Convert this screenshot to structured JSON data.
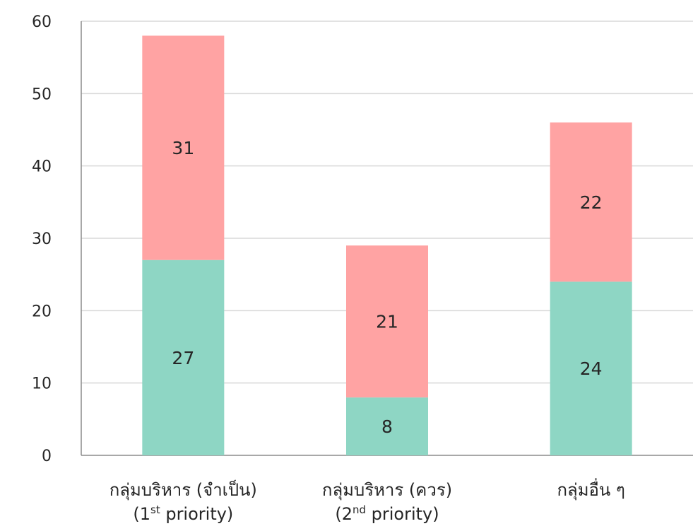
{
  "chart_data": {
    "type": "bar",
    "stacked": true,
    "categories": [
      {
        "line1": "กลุ่มบริหาร (จำเป็น)",
        "line2_pre": "(1",
        "line2_sup": "st",
        "line2_post": " priority)"
      },
      {
        "line1": "กลุ่มบริหาร (ควร)",
        "line2_pre": "(2",
        "line2_sup": "nd",
        "line2_post": " priority)"
      },
      {
        "line1": "กลุ่มอื่น ๆ",
        "line2_pre": "",
        "line2_sup": "",
        "line2_post": ""
      }
    ],
    "series": [
      {
        "values": [
          27,
          8,
          24
        ],
        "color": "#8ed6c4"
      },
      {
        "values": [
          31,
          21,
          22
        ],
        "color": "#ffa3a3"
      }
    ],
    "ylim": [
      0,
      60
    ],
    "yticks": [
      0,
      10,
      20,
      30,
      40,
      50,
      60
    ],
    "grid": true,
    "legend": "none"
  }
}
